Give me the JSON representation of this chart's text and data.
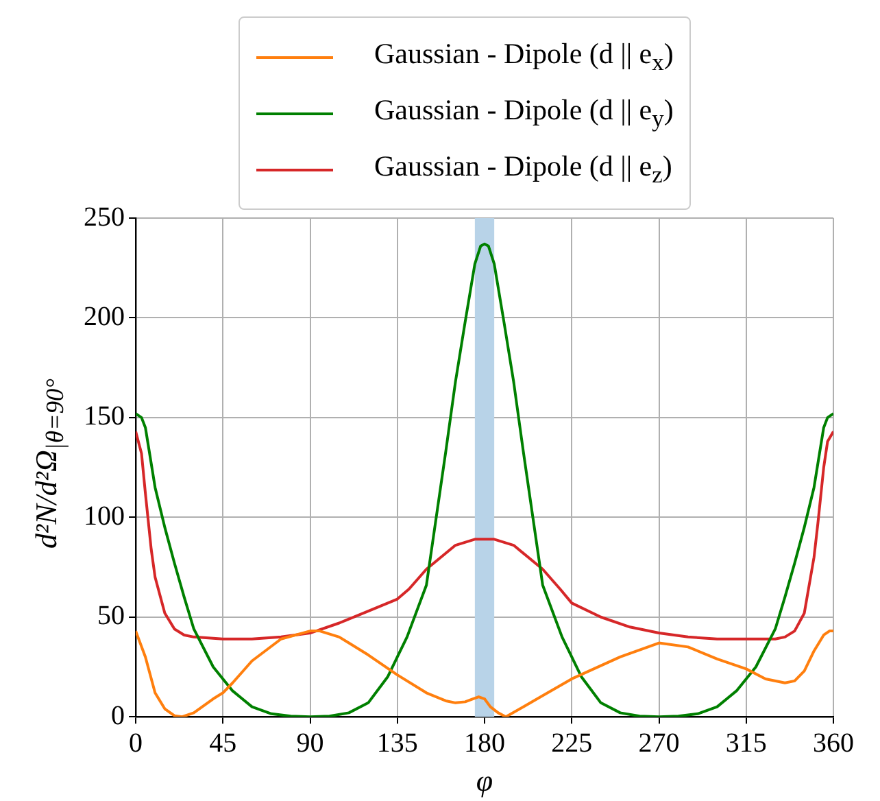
{
  "chart_data": {
    "type": "line",
    "xlabel": "φ",
    "ylabel": "d²N/d²Ω$_{|θ=90°}$",
    "xlim": [
      0,
      360
    ],
    "xticks": [
      0,
      45,
      90,
      135,
      180,
      225,
      270,
      315,
      360
    ],
    "ylim": [
      0,
      250
    ],
    "yticks": [
      0,
      50,
      100,
      150,
      200,
      250
    ],
    "grid": true,
    "legend": "top",
    "marker": "none",
    "line_style": "solid",
    "bands": [
      {
        "axis": "x",
        "from": 175,
        "to": 185,
        "color": "#b8d3e8"
      }
    ],
    "series": [
      {
        "name": "Gaussian - Dipole (d || e$_{x}$)",
        "color": "#ff7f0e",
        "x": [
          0,
          5,
          10,
          15,
          20,
          24,
          30,
          40,
          45,
          50,
          60,
          75,
          90,
          95,
          105,
          120,
          135,
          150,
          160,
          165,
          170,
          174,
          177,
          180,
          183,
          187,
          191,
          200,
          225,
          250,
          270,
          285,
          300,
          315,
          325,
          335,
          340,
          345,
          350,
          355,
          358,
          360
        ],
        "values": [
          43,
          30,
          12,
          4,
          0.5,
          0,
          2,
          9,
          12,
          17,
          28,
          39,
          43,
          43,
          40,
          31,
          21,
          12,
          8,
          7,
          7.5,
          9,
          10,
          9,
          5,
          2,
          0,
          5,
          19,
          30,
          37,
          35,
          29,
          24,
          19,
          17,
          18,
          23,
          33,
          41,
          43,
          43
        ]
      },
      {
        "name": "Gaussian - Dipole (d || e$_{y}$)",
        "color": "#008000",
        "x": [
          0,
          3,
          5,
          10,
          15,
          20,
          25,
          30,
          40,
          45,
          50,
          60,
          70,
          80,
          90,
          100,
          110,
          120,
          130,
          135,
          140,
          150,
          160,
          165,
          170,
          175,
          178,
          180,
          182,
          185,
          190,
          195,
          200,
          210,
          220,
          225,
          230,
          240,
          250,
          260,
          270,
          280,
          290,
          300,
          310,
          315,
          320,
          330,
          335,
          340,
          345,
          350,
          355,
          357,
          360
        ],
        "values": [
          152,
          150,
          145,
          115,
          95,
          77,
          60,
          44,
          25,
          19,
          13,
          5,
          1.5,
          0.3,
          0,
          0.3,
          2,
          7,
          20,
          30,
          40,
          66,
          133,
          168,
          198,
          227,
          236,
          237,
          236,
          227,
          198,
          168,
          133,
          66,
          40,
          30,
          20,
          7,
          2,
          0.3,
          0,
          0.3,
          1.5,
          5,
          13,
          19,
          25,
          44,
          60,
          77,
          95,
          115,
          145,
          150,
          152
        ]
      },
      {
        "name": "Gaussian - Dipole (d || e$_{z}$)",
        "color": "#d62728",
        "x": [
          0,
          3,
          5,
          8,
          10,
          15,
          20,
          25,
          30,
          45,
          60,
          75,
          90,
          105,
          120,
          135,
          141,
          150,
          165,
          175,
          180,
          185,
          195,
          210,
          219,
          225,
          240,
          255,
          270,
          285,
          300,
          315,
          330,
          335,
          340,
          345,
          350,
          352,
          355,
          357,
          360
        ],
        "values": [
          143,
          132,
          112,
          84,
          70,
          52,
          44,
          41,
          40,
          39,
          39,
          40,
          42,
          47,
          53,
          59,
          64,
          74,
          86,
          89,
          89,
          89,
          86,
          74,
          64,
          57,
          50,
          45,
          42,
          40,
          39,
          39,
          39,
          40,
          43,
          52,
          80,
          97,
          125,
          138,
          143
        ]
      }
    ]
  }
}
